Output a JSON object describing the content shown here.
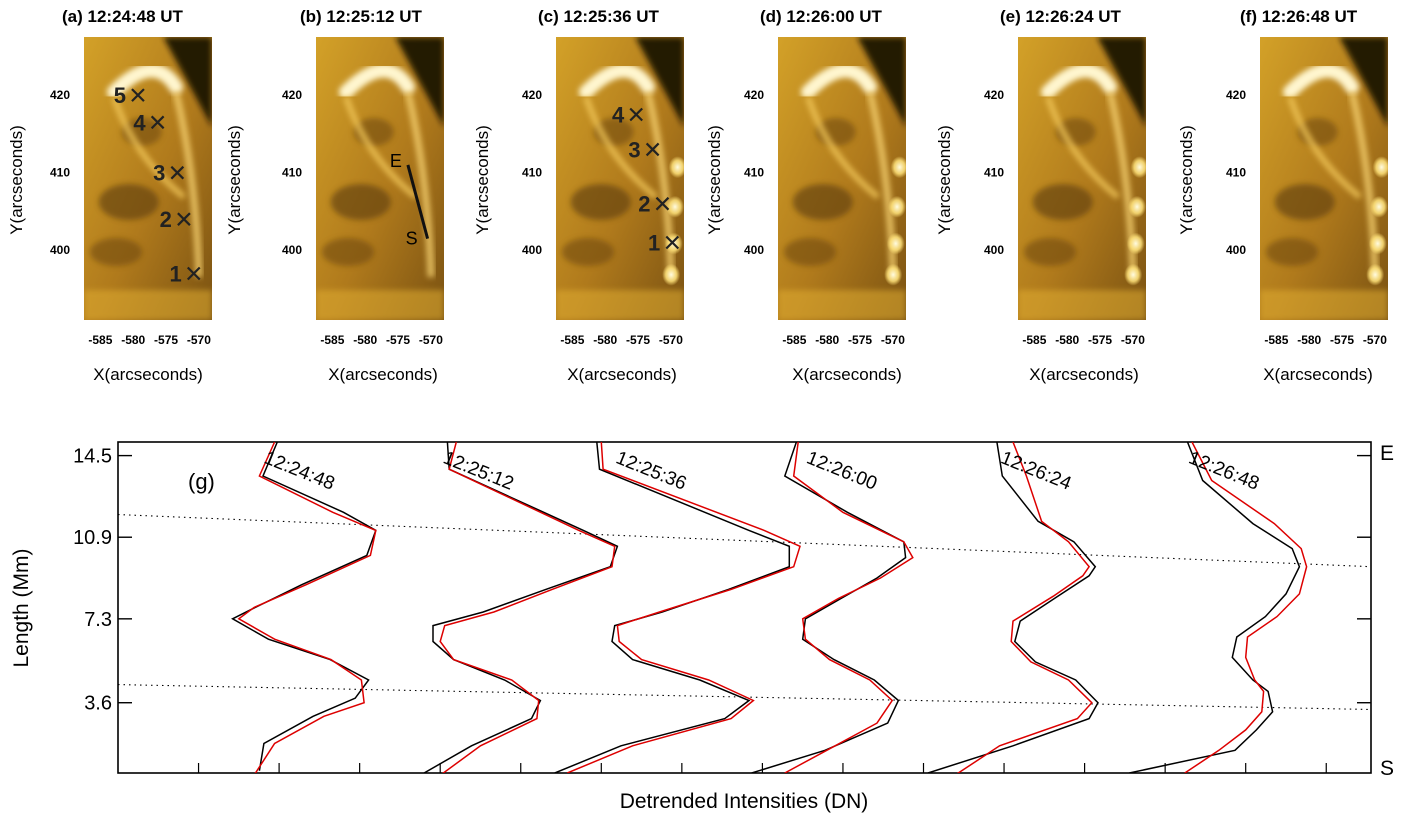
{
  "chart_data": [
    {
      "type": "image",
      "title": "(a) 12:24:48 UT",
      "xlabel": "X(arcseconds)",
      "ylabel": "Y(arcseconds)",
      "xticks": [
        -585,
        -580,
        -575,
        -570
      ],
      "yticks": [
        400,
        410,
        420
      ],
      "xlim": [
        -587.5,
        -568
      ],
      "ylim": [
        391,
        427.5
      ],
      "annotations": [
        {
          "label": "5",
          "x": -580.5,
          "y": 420
        },
        {
          "label": "4",
          "x": -577.5,
          "y": 416.5
        },
        {
          "label": "3",
          "x": -574.5,
          "y": 410
        },
        {
          "label": "2",
          "x": -573.5,
          "y": 404
        },
        {
          "label": "1",
          "x": -572,
          "y": 397
        }
      ]
    },
    {
      "type": "image",
      "title": "(b) 12:25:12 UT",
      "xlabel": "X(arcseconds)",
      "ylabel": "Y(arcseconds)",
      "xticks": [
        -585,
        -580,
        -575,
        -570
      ],
      "yticks": [
        400,
        410,
        420
      ],
      "xlim": [
        -587.5,
        -568
      ],
      "ylim": [
        391,
        427.5
      ],
      "slit": {
        "start_label": "E",
        "end_label": "S",
        "start": [
          -573.5,
          411
        ],
        "end": [
          -570.5,
          401.5
        ]
      }
    },
    {
      "type": "image",
      "title": "(c) 12:25:36 UT",
      "xlabel": "X(arcseconds)",
      "ylabel": "Y(arcseconds)",
      "xticks": [
        -585,
        -580,
        -575,
        -570
      ],
      "yticks": [
        400,
        410,
        420
      ],
      "xlim": [
        -587.5,
        -568
      ],
      "ylim": [
        391,
        427.5
      ],
      "annotations": [
        {
          "label": "4",
          "x": -576.5,
          "y": 417.5
        },
        {
          "label": "3",
          "x": -574,
          "y": 413
        },
        {
          "label": "2",
          "x": -572.5,
          "y": 406
        },
        {
          "label": "1",
          "x": -571,
          "y": 401
        }
      ]
    },
    {
      "type": "image",
      "title": "(d) 12:26:00 UT",
      "xlabel": "X(arcseconds)",
      "ylabel": "Y(arcseconds)",
      "xticks": [
        -585,
        -580,
        -575,
        -570
      ],
      "yticks": [
        400,
        410,
        420
      ],
      "xlim": [
        -587.5,
        -568
      ],
      "ylim": [
        391,
        427.5
      ]
    },
    {
      "type": "image",
      "title": "(e) 12:26:24 UT",
      "xlabel": "X(arcseconds)",
      "ylabel": "Y(arcseconds)",
      "xticks": [
        -585,
        -580,
        -575,
        -570
      ],
      "yticks": [
        400,
        410,
        420
      ],
      "xlim": [
        -587.5,
        -568
      ],
      "ylim": [
        391,
        427.5
      ]
    },
    {
      "type": "image",
      "title": "(f) 12:26:48 UT",
      "xlabel": "X(arcseconds)",
      "ylabel": "Y(arcseconds)",
      "xticks": [
        -585,
        -580,
        -575,
        -570
      ],
      "yticks": [
        400,
        410,
        420
      ],
      "xlim": [
        -587.5,
        -568
      ],
      "ylim": [
        391,
        427.5
      ]
    },
    {
      "type": "line",
      "panel_label": "(g)",
      "xlabel": "Detrended Intensities (DN)",
      "ylabel": "Length (Mm)",
      "yticks": [
        3.6,
        7.3,
        10.9,
        14.5
      ],
      "ylim": [
        0.5,
        15.1
      ],
      "xlim": [
        0,
        14
      ],
      "x_minor_ticks": [
        0.9,
        1.8,
        2.7,
        3.6,
        4.5,
        5.4,
        6.3,
        7.2,
        8.1,
        9.0,
        9.9,
        10.8,
        11.7,
        12.6,
        13.5
      ],
      "right_labels": {
        "top": "E",
        "bottom": "S"
      },
      "trend_lines": [
        {
          "x": [
            0,
            14
          ],
          "y": [
            11.9,
            9.6
          ]
        },
        {
          "x": [
            0,
            14
          ],
          "y": [
            4.4,
            3.3
          ]
        }
      ],
      "profile_labels": [
        "12:24:48",
        "12:25:12",
        "12:25:36",
        "12:26:00",
        "12:26:24",
        "12:26:48"
      ],
      "series": [
        {
          "name": "12:24:48",
          "color": "#000000",
          "y": [
            0.6,
            1.8,
            3.0,
            3.8,
            4.6,
            5.5,
            6.4,
            7.3,
            7.7,
            8.8,
            10.1,
            11.2,
            12.0,
            13.6,
            15.1
          ],
          "x": [
            1.58,
            1.63,
            2.18,
            2.65,
            2.8,
            2.37,
            1.68,
            1.28,
            1.48,
            2.05,
            2.78,
            2.88,
            2.52,
            1.62,
            1.78
          ]
        },
        {
          "name": "12:24:48",
          "color": "#dd0000",
          "y": [
            0.4,
            1.8,
            3.0,
            3.6,
            4.6,
            5.5,
            6.4,
            7.3,
            7.8,
            8.8,
            10.1,
            11.2,
            12.0,
            13.6,
            15.1
          ],
          "x": [
            1.52,
            1.75,
            2.3,
            2.75,
            2.72,
            2.38,
            1.75,
            1.35,
            1.52,
            2.1,
            2.82,
            2.88,
            2.4,
            1.58,
            1.75
          ]
        },
        {
          "name": "12:25:12",
          "color": "#000000",
          "y": [
            0.5,
            1.7,
            2.9,
            3.7,
            4.6,
            5.5,
            6.3,
            7.0,
            7.6,
            8.6,
            9.6,
            10.5,
            11.2,
            13.9,
            15.1
          ],
          "x": [
            3.42,
            3.95,
            4.62,
            4.72,
            4.32,
            3.75,
            3.52,
            3.52,
            4.08,
            4.78,
            5.5,
            5.58,
            5.2,
            3.7,
            3.68
          ]
        },
        {
          "name": "12:25:12",
          "color": "#dd0000",
          "y": [
            0.4,
            1.7,
            2.9,
            3.7,
            4.6,
            5.5,
            6.3,
            7.0,
            7.6,
            8.6,
            9.6,
            10.5,
            11.2,
            13.9,
            15.1
          ],
          "x": [
            3.6,
            4.05,
            4.68,
            4.7,
            4.4,
            3.75,
            3.6,
            3.65,
            4.2,
            4.85,
            5.52,
            5.55,
            5.15,
            3.7,
            3.78
          ]
        },
        {
          "name": "12:25:12",
          "color": "#000000",
          "y": [
            0.5,
            1.7,
            2.9,
            3.7,
            4.6,
            5.5,
            6.3,
            7.0,
            7.6,
            8.6,
            9.6,
            10.5,
            11.2,
            13.9,
            15.1
          ],
          "x": [
            4.88,
            5.62,
            6.78,
            7.05,
            6.5,
            5.75,
            5.52,
            5.55,
            6.08,
            6.82,
            7.5,
            7.5,
            7.05,
            5.38,
            5.35
          ]
        },
        {
          "name": "12:25:36",
          "color": "#dd0000",
          "y": [
            0.5,
            1.7,
            2.9,
            3.7,
            4.6,
            5.5,
            6.3,
            7.0,
            7.6,
            8.6,
            9.6,
            10.5,
            11.2,
            13.9,
            15.1
          ],
          "x": [
            5.02,
            5.75,
            6.85,
            7.1,
            6.6,
            5.85,
            5.6,
            5.58,
            6.05,
            6.85,
            7.55,
            7.62,
            7.22,
            5.42,
            5.4
          ]
        },
        {
          "name": "12:26:00",
          "color": "#000000",
          "y": [
            0.5,
            1.5,
            2.7,
            3.7,
            4.6,
            5.5,
            6.4,
            7.3,
            8.2,
            9.1,
            10.0,
            10.7,
            12.0,
            13.6,
            15.1
          ],
          "x": [
            7.08,
            7.9,
            8.6,
            8.72,
            8.45,
            8.0,
            7.65,
            7.68,
            8.08,
            8.48,
            8.8,
            8.78,
            8.15,
            7.45,
            7.58
          ]
        },
        {
          "name": "12:26:00",
          "color": "#dd0000",
          "y": [
            0.5,
            1.5,
            2.7,
            3.7,
            4.6,
            5.5,
            6.4,
            7.3,
            8.2,
            9.1,
            10.0,
            10.7,
            12.0,
            13.6,
            15.1
          ],
          "x": [
            7.45,
            7.92,
            8.48,
            8.65,
            8.4,
            7.95,
            7.68,
            7.65,
            8.05,
            8.52,
            8.88,
            8.78,
            8.1,
            7.55,
            7.6
          ]
        },
        {
          "name": "12:26:24",
          "color": "#000000",
          "y": [
            0.5,
            1.7,
            2.9,
            3.6,
            4.6,
            5.4,
            6.3,
            7.2,
            8.3,
            9.2,
            9.6,
            10.7,
            11.6,
            13.6,
            15.1
          ],
          "x": [
            9.05,
            10.0,
            10.85,
            10.95,
            10.7,
            10.25,
            10.02,
            10.08,
            10.5,
            10.85,
            10.92,
            10.68,
            10.28,
            9.88,
            9.82
          ]
        },
        {
          "name": "12:26:24",
          "color": "#dd0000",
          "y": [
            0.4,
            1.7,
            2.9,
            3.6,
            4.6,
            5.4,
            6.3,
            7.2,
            8.3,
            9.2,
            9.6,
            10.7,
            11.6,
            13.6,
            15.1
          ],
          "x": [
            9.35,
            9.85,
            10.72,
            10.88,
            10.62,
            10.2,
            9.98,
            10.0,
            10.45,
            10.78,
            10.85,
            10.62,
            10.32,
            10.15,
            10.0
          ]
        },
        {
          "name": "12:26:48",
          "color": "#000000",
          "y": [
            0.5,
            1.5,
            2.4,
            3.2,
            4.1,
            4.6,
            5.6,
            6.5,
            7.4,
            8.4,
            9.6,
            10.4,
            11.5,
            13.4,
            15.1
          ],
          "x": [
            11.3,
            12.48,
            12.72,
            12.9,
            12.85,
            12.68,
            12.45,
            12.5,
            12.82,
            13.05,
            13.2,
            13.12,
            12.68,
            12.12,
            11.95
          ]
        },
        {
          "name": "12:26:48",
          "color": "#dd0000",
          "y": [
            0.5,
            1.5,
            2.4,
            3.2,
            4.1,
            4.6,
            5.6,
            6.5,
            7.4,
            8.4,
            9.6,
            10.4,
            11.5,
            13.4,
            15.1
          ],
          "x": [
            11.92,
            12.3,
            12.6,
            12.78,
            12.8,
            12.7,
            12.6,
            12.62,
            12.95,
            13.2,
            13.28,
            13.22,
            12.92,
            12.22,
            12.0
          ]
        }
      ]
    }
  ]
}
